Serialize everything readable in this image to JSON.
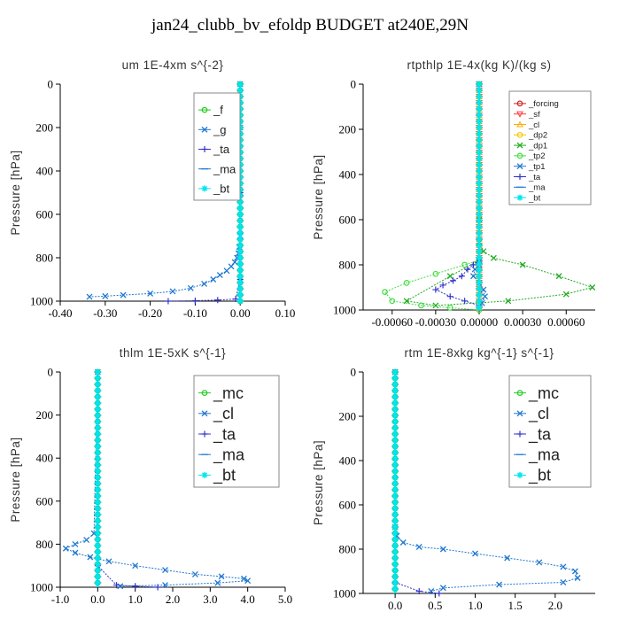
{
  "title": "jan24_clubb_bv_efoldp  BUDGET at240E,29N",
  "chart_data": [
    {
      "type": "line",
      "title": "um   1E-4xm s^{-2}",
      "ylabel": "Pressure [hPa]",
      "xlim": [
        -0.4,
        0.1
      ],
      "ylim": [
        1000,
        0
      ],
      "xticks": [
        "-0.40",
        "-0.30",
        "-0.20",
        "-0.10",
        "0.00",
        "0.10"
      ],
      "yticks": [
        "0",
        "200",
        "400",
        "600",
        "800",
        "1000"
      ],
      "legend": "top-right",
      "series": [
        {
          "name": "_f",
          "color": "#22cc22",
          "marker": "o",
          "x": [
            0,
            0,
            0,
            0,
            0,
            0,
            0,
            0,
            0,
            0,
            0,
            0,
            0,
            0,
            0,
            0,
            0,
            0,
            0,
            0,
            0,
            0,
            0
          ],
          "y": [
            0,
            50,
            100,
            150,
            200,
            250,
            300,
            350,
            400,
            450,
            500,
            550,
            600,
            650,
            700,
            750,
            800,
            850,
            900,
            940,
            970,
            990,
            1000
          ]
        },
        {
          "name": "_g",
          "color": "#1f77d0",
          "marker": "x",
          "x": [
            0,
            0,
            0,
            0,
            -0.002,
            -0.004,
            -0.007,
            -0.012,
            -0.02,
            -0.03,
            -0.045,
            -0.06,
            -0.08,
            -0.11,
            -0.15,
            -0.2,
            -0.26,
            -0.3,
            -0.335
          ],
          "y": [
            0,
            200,
            500,
            700,
            750,
            780,
            800,
            820,
            840,
            860,
            880,
            900,
            920,
            940,
            955,
            965,
            972,
            977,
            980
          ]
        },
        {
          "name": "_ta",
          "color": "#3333cc",
          "marker": "+",
          "x": [
            0,
            0,
            0,
            -0.01,
            -0.05,
            -0.1,
            -0.16
          ],
          "y": [
            0,
            500,
            900,
            990,
            995,
            998,
            1000
          ]
        },
        {
          "name": "_ma",
          "color": "#1f77d0",
          "marker": "-",
          "x": [
            0,
            0,
            0
          ],
          "y": [
            0,
            500,
            1000
          ]
        },
        {
          "name": "_bt",
          "color": "#00e5ee",
          "marker": "*",
          "x": [
            0,
            0,
            0,
            0,
            0,
            0,
            0,
            0,
            0,
            0,
            0
          ],
          "y": [
            0,
            100,
            200,
            300,
            400,
            500,
            600,
            700,
            800,
            900,
            1000
          ]
        }
      ]
    },
    {
      "type": "line",
      "title": "rtpthlp   1E-4x(kg K)/(kg s)",
      "ylabel": "Pressure [hPa]",
      "xlim": [
        -0.0008,
        0.0008
      ],
      "ylim": [
        1000,
        0
      ],
      "xticks": [
        "-0.00060",
        "-0.00030",
        "0.00000",
        "0.00030",
        "0.00060"
      ],
      "yticks": [
        "0",
        "200",
        "400",
        "600",
        "800",
        "1000"
      ],
      "legend": "top-right",
      "series": [
        {
          "name": "_forcing",
          "color": "#cc2222",
          "marker": "o",
          "x": [
            0,
            0,
            0,
            0,
            0,
            0
          ],
          "y": [
            0,
            200,
            400,
            600,
            800,
            1000
          ]
        },
        {
          "name": "_sf",
          "color": "#ff3333",
          "marker": "v",
          "x": [
            0,
            0,
            0,
            0,
            0,
            0
          ],
          "y": [
            0,
            200,
            400,
            600,
            800,
            1000
          ]
        },
        {
          "name": "_cl",
          "color": "#ffaa00",
          "marker": "^",
          "x": [
            0,
            0,
            0
          ],
          "y": [
            0,
            500,
            1000
          ]
        },
        {
          "name": "_dp2",
          "color": "#eecc00",
          "marker": "o",
          "x": [
            0,
            0,
            0
          ],
          "y": [
            0,
            500,
            1000
          ]
        },
        {
          "name": "_dp1",
          "color": "#22aa22",
          "marker": "x",
          "x": [
            0,
            0,
            0,
            3e-05,
            0.0001,
            0.0003,
            0.00055,
            0.00078,
            0.0006,
            0.0002,
            -0.0003,
            -0.0005,
            -0.0002,
            0
          ],
          "y": [
            0,
            600,
            700,
            740,
            770,
            800,
            850,
            900,
            930,
            960,
            980,
            960,
            850,
            780
          ],
          "closed": true
        },
        {
          "name": "_tp2",
          "color": "#44dd44",
          "marker": "o",
          "x": [
            0,
            0,
            -0.0001,
            -0.0003,
            -0.0005,
            -0.00065,
            -0.0006,
            -0.0004,
            -0.0002,
            0
          ],
          "y": [
            0,
            780,
            800,
            840,
            880,
            920,
            960,
            980,
            990,
            1000
          ]
        },
        {
          "name": "_tp1",
          "color": "#1f77d0",
          "marker": "x",
          "x": [
            0,
            0,
            -3e-05,
            -4e-05,
            0,
            3e-05,
            4e-05,
            2e-05
          ],
          "y": [
            0,
            800,
            820,
            850,
            880,
            910,
            940,
            970
          ]
        },
        {
          "name": "_ta",
          "color": "#3333cc",
          "marker": "+",
          "x": [
            0,
            -4e-05,
            -8e-05,
            -0.00012,
            -0.00018,
            -0.00025,
            -0.0003,
            -0.0002,
            -0.0001,
            0
          ],
          "y": [
            780,
            800,
            820,
            850,
            870,
            890,
            910,
            940,
            960,
            980
          ]
        },
        {
          "name": "_ma",
          "color": "#1f77d0",
          "marker": "-",
          "x": [
            0,
            0
          ],
          "y": [
            0,
            1000
          ]
        },
        {
          "name": "_bt",
          "color": "#00e5ee",
          "marker": "*",
          "x": [
            0,
            0
          ],
          "y": [
            0,
            1000
          ]
        }
      ]
    },
    {
      "type": "line",
      "title": "thlm   1E-5xK s^{-1}",
      "ylabel": "Pressure [hPa]",
      "xlim": [
        -1.0,
        5.0
      ],
      "ylim": [
        1000,
        0
      ],
      "xticks": [
        "-1.0",
        "0.0",
        "1.0",
        "2.0",
        "3.0",
        "4.0",
        "5.0"
      ],
      "yticks": [
        "0",
        "200",
        "400",
        "600",
        "800",
        "1000"
      ],
      "legend": "top-right",
      "series": [
        {
          "name": "_mc",
          "color": "#22cc22",
          "marker": "o",
          "x": [
            0,
            0,
            0,
            0,
            0,
            0,
            0,
            0,
            0,
            0,
            0
          ],
          "y": [
            0,
            100,
            200,
            300,
            400,
            500,
            600,
            700,
            800,
            900,
            1000
          ]
        },
        {
          "name": "_cl",
          "color": "#1f77d0",
          "marker": "x",
          "x": [
            0,
            -0.1,
            -0.3,
            -0.6,
            -0.85,
            -0.6,
            -0.2,
            0.3,
            1.0,
            1.8,
            2.6,
            3.3,
            3.9,
            4.0,
            3.2,
            1.8,
            0.6
          ],
          "y": [
            0,
            750,
            780,
            800,
            820,
            840,
            860,
            880,
            900,
            920,
            940,
            950,
            960,
            970,
            980,
            990,
            995
          ]
        },
        {
          "name": "_ta",
          "color": "#3333cc",
          "marker": "+",
          "x": [
            0,
            0,
            0.5,
            1.0,
            1.6
          ],
          "y": [
            0,
            900,
            990,
            995,
            1000
          ]
        },
        {
          "name": "_ma",
          "color": "#1f77d0",
          "marker": "-",
          "x": [
            0,
            0
          ],
          "y": [
            0,
            1000
          ]
        },
        {
          "name": "_bt",
          "color": "#00e5ee",
          "marker": "*",
          "x": [
            0,
            0,
            0,
            0,
            0,
            0
          ],
          "y": [
            0,
            200,
            400,
            600,
            800,
            1000
          ]
        }
      ]
    },
    {
      "type": "line",
      "title": "rtm   1E-8xkg kg^{-1} s^{-1}",
      "ylabel": "Pressure [hPa]",
      "xlim": [
        -0.4,
        2.5
      ],
      "ylim": [
        1000,
        0
      ],
      "xticks": [
        "0.0",
        "0.5",
        "1.0",
        "1.5",
        "2.0"
      ],
      "yticks": [
        "0",
        "200",
        "400",
        "600",
        "800",
        "1000"
      ],
      "legend": "top-right",
      "series": [
        {
          "name": "_mc",
          "color": "#22cc22",
          "marker": "o",
          "x": [
            0,
            0,
            0,
            0,
            0,
            0,
            0,
            0,
            0,
            0,
            0
          ],
          "y": [
            0,
            100,
            200,
            300,
            400,
            500,
            600,
            700,
            800,
            900,
            1000
          ]
        },
        {
          "name": "_cl",
          "color": "#1f77d0",
          "marker": "x",
          "x": [
            0,
            0,
            0.02,
            0.1,
            0.3,
            0.6,
            1.0,
            1.4,
            1.8,
            2.1,
            2.25,
            2.28,
            2.1,
            1.3,
            0.6,
            0.45
          ],
          "y": [
            0,
            700,
            740,
            770,
            790,
            800,
            820,
            840,
            860,
            880,
            900,
            930,
            950,
            960,
            975,
            990
          ]
        },
        {
          "name": "_ta",
          "color": "#3333cc",
          "marker": "+",
          "x": [
            0,
            0,
            0.3,
            0.55
          ],
          "y": [
            0,
            950,
            990,
            1000
          ]
        },
        {
          "name": "_ma",
          "color": "#1f77d0",
          "marker": "-",
          "x": [
            0,
            0
          ],
          "y": [
            0,
            1000
          ]
        },
        {
          "name": "_bt",
          "color": "#00e5ee",
          "marker": "*",
          "x": [
            0,
            0,
            0,
            0,
            0,
            0
          ],
          "y": [
            0,
            200,
            400,
            600,
            800,
            1000
          ]
        }
      ]
    }
  ]
}
